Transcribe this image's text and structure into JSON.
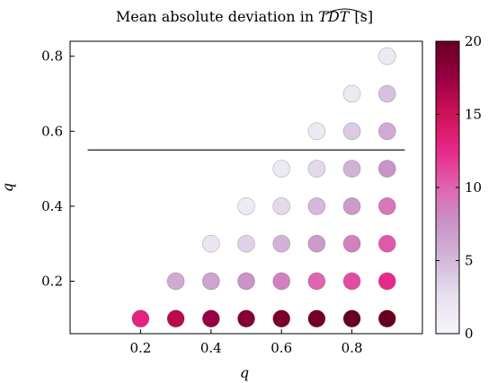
{
  "chart_data": {
    "type": "scatter",
    "title_prefix": "Mean absolute deviation in ",
    "title_symbol": "TDT",
    "title_unit": "[s]",
    "xlabel": "q",
    "ylabel": "q",
    "xlim": [
      0.0,
      1.0
    ],
    "ylim": [
      0.06,
      0.84
    ],
    "xticks": [
      0.2,
      0.4,
      0.6,
      0.8
    ],
    "yticks": [
      0.2,
      0.4,
      0.6,
      0.8
    ],
    "tick_labels_x": [
      "0.2",
      "0.4",
      "0.6",
      "0.8"
    ],
    "tick_labels_y": [
      "0.2",
      "0.4",
      "0.6",
      "0.8"
    ],
    "hline": {
      "y": 0.55,
      "x_from": 0.05,
      "x_to": 0.95
    },
    "colorbar": {
      "min": 0,
      "max": 20,
      "ticks": [
        0,
        5,
        10,
        15,
        20
      ],
      "tick_labels": [
        "0",
        "5",
        "10",
        "15",
        "20"
      ],
      "stops": [
        "#f7f4f9",
        "#e7e1ef",
        "#d4b9da",
        "#c994c7",
        "#df65b0",
        "#e7298a",
        "#ce1256",
        "#980043",
        "#67001f"
      ]
    },
    "points": [
      {
        "x": 0.2,
        "y": 0.1,
        "v": 13
      },
      {
        "x": 0.3,
        "y": 0.1,
        "v": 16
      },
      {
        "x": 0.4,
        "y": 0.1,
        "v": 17.5
      },
      {
        "x": 0.5,
        "y": 0.1,
        "v": 18.5
      },
      {
        "x": 0.6,
        "y": 0.1,
        "v": 19
      },
      {
        "x": 0.7,
        "y": 0.1,
        "v": 19.5
      },
      {
        "x": 0.8,
        "y": 0.1,
        "v": 20
      },
      {
        "x": 0.9,
        "y": 0.1,
        "v": 20
      },
      {
        "x": 0.3,
        "y": 0.2,
        "v": 6
      },
      {
        "x": 0.4,
        "y": 0.2,
        "v": 6.5
      },
      {
        "x": 0.5,
        "y": 0.2,
        "v": 7.5
      },
      {
        "x": 0.6,
        "y": 0.2,
        "v": 8.5
      },
      {
        "x": 0.7,
        "y": 0.2,
        "v": 10
      },
      {
        "x": 0.8,
        "y": 0.2,
        "v": 11
      },
      {
        "x": 0.9,
        "y": 0.2,
        "v": 12.5
      },
      {
        "x": 0.4,
        "y": 0.3,
        "v": 2
      },
      {
        "x": 0.5,
        "y": 0.3,
        "v": 3.5
      },
      {
        "x": 0.6,
        "y": 0.3,
        "v": 5.5
      },
      {
        "x": 0.7,
        "y": 0.3,
        "v": 7
      },
      {
        "x": 0.8,
        "y": 0.3,
        "v": 8.5
      },
      {
        "x": 0.9,
        "y": 0.3,
        "v": 10.5
      },
      {
        "x": 0.5,
        "y": 0.4,
        "v": 1.2
      },
      {
        "x": 0.6,
        "y": 0.4,
        "v": 3
      },
      {
        "x": 0.7,
        "y": 0.4,
        "v": 5
      },
      {
        "x": 0.8,
        "y": 0.4,
        "v": 7
      },
      {
        "x": 0.9,
        "y": 0.4,
        "v": 9
      },
      {
        "x": 0.6,
        "y": 0.5,
        "v": 1.5
      },
      {
        "x": 0.7,
        "y": 0.5,
        "v": 3
      },
      {
        "x": 0.8,
        "y": 0.5,
        "v": 5.5
      },
      {
        "x": 0.9,
        "y": 0.5,
        "v": 7.5
      },
      {
        "x": 0.7,
        "y": 0.6,
        "v": 1.5
      },
      {
        "x": 0.8,
        "y": 0.6,
        "v": 4
      },
      {
        "x": 0.9,
        "y": 0.6,
        "v": 6
      },
      {
        "x": 0.8,
        "y": 0.7,
        "v": 1.5
      },
      {
        "x": 0.9,
        "y": 0.7,
        "v": 4.5
      },
      {
        "x": 0.9,
        "y": 0.8,
        "v": 1.5
      }
    ]
  }
}
